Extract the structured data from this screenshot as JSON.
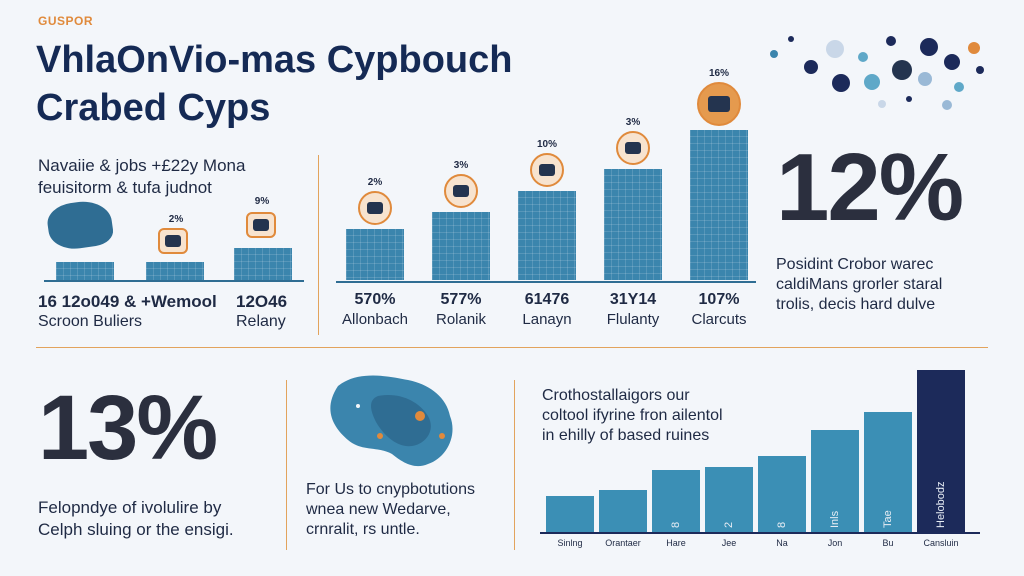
{
  "header": {
    "kicker": "GUSPOR",
    "title_line1": "VhlaOnVio-mas Cypbouch",
    "title_line2": "Crabed Cyps"
  },
  "intro": {
    "line1": "Navaiie & jobs +£22y Mona",
    "line2": "feuisitorm & tufa judnot"
  },
  "left_stats": {
    "pct_small_1": "2%",
    "pct_small_2": "9%",
    "stat1_num": "16 12o049 & +Wemool",
    "stat1_label": "Scroon Buliers",
    "stat2_num": "12O46",
    "stat2_label": "Relany"
  },
  "mid_chart": {
    "bars": [
      {
        "pct": "2%",
        "value": "570%",
        "label": "Allonbach",
        "height": 0.34
      },
      {
        "pct": "3%",
        "value": "577%",
        "label": "Rolanik",
        "height": 0.45
      },
      {
        "pct": "10%",
        "value": "61476",
        "label": "Lanayn",
        "height": 0.59
      },
      {
        "pct": "3%",
        "value": "31Y14",
        "label": "Flulanty",
        "height": 0.74
      },
      {
        "pct": "16%",
        "value": "107%",
        "label": "Clarcuts",
        "height": 1.0
      }
    ]
  },
  "right_top": {
    "big_pct": "12%",
    "line1": "Posidint Crobor warec",
    "line2": "caldiMans grorler staral",
    "line3": "trolis, decis hard dulve"
  },
  "bottom_left": {
    "big_pct": "13%",
    "line1": "Felopndye of ivolulire by",
    "line2": "Celph sluing or the ensigi."
  },
  "bottom_mid": {
    "line1": "For Us to cnypbotutions",
    "line2": "wnea new Wedarve,",
    "line3": "crnralit, rs untle."
  },
  "bottom_right": {
    "line1": "Crothostallaigors our",
    "line2": "coltool ifyrine fron ailentol",
    "line3": "in ehilly of based ruines",
    "chart_data": {
      "type": "bar",
      "categories": [
        "Sinlng",
        "Orantaer",
        "Hare",
        "Jee",
        "Na",
        "Jon",
        "Bu",
        "Cansluin"
      ],
      "values": [
        22,
        26,
        38,
        40,
        47,
        63,
        74,
        100
      ],
      "bar_labels": [
        "",
        "",
        "8",
        "2",
        "8",
        "Inls",
        "Tae",
        "Helobodz"
      ],
      "dark_index": 7
    }
  },
  "colors": {
    "accent": "#e08a3c",
    "navy": "#152a55",
    "teal": "#3b85ad",
    "dark_bar": "#1c2a5a"
  }
}
